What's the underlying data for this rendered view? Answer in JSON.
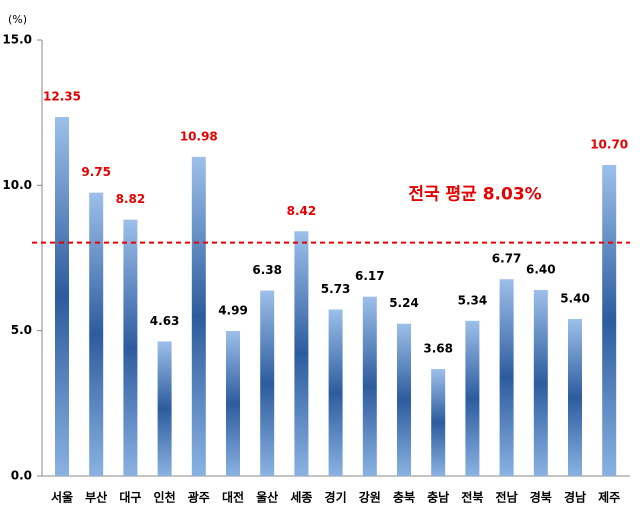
{
  "chart_data": {
    "type": "bar",
    "y_unit": "(%)",
    "categories": [
      "서울",
      "부산",
      "대구",
      "인천",
      "광주",
      "대전",
      "울산",
      "세종",
      "경기",
      "강원",
      "충북",
      "충남",
      "전북",
      "전남",
      "경북",
      "경남",
      "제주"
    ],
    "values": [
      12.35,
      9.75,
      8.82,
      4.63,
      10.98,
      4.99,
      6.38,
      8.42,
      5.73,
      6.17,
      5.24,
      3.68,
      5.34,
      6.77,
      6.4,
      5.4,
      10.7
    ],
    "value_labels": [
      "12.35",
      "9.75",
      "8.82",
      "4.63",
      "10.98",
      "4.99",
      "6.38",
      "8.42",
      "5.73",
      "6.17",
      "5.24",
      "3.68",
      "5.34",
      "6.77",
      "6.40",
      "5.40",
      "10.70"
    ],
    "color": "#3a6fb5",
    "highlight_color": "#e60000",
    "reference_line": {
      "value": 8.03,
      "label": "전국 평균 8.03%",
      "color": "#e60000"
    },
    "ylim": [
      0,
      15
    ],
    "yticks": [
      {
        "value": 0,
        "label": "0.0"
      },
      {
        "value": 5,
        "label": "5.0"
      },
      {
        "value": 10,
        "label": "10.0"
      },
      {
        "value": 15,
        "label": "15.0"
      }
    ],
    "grid": false
  }
}
